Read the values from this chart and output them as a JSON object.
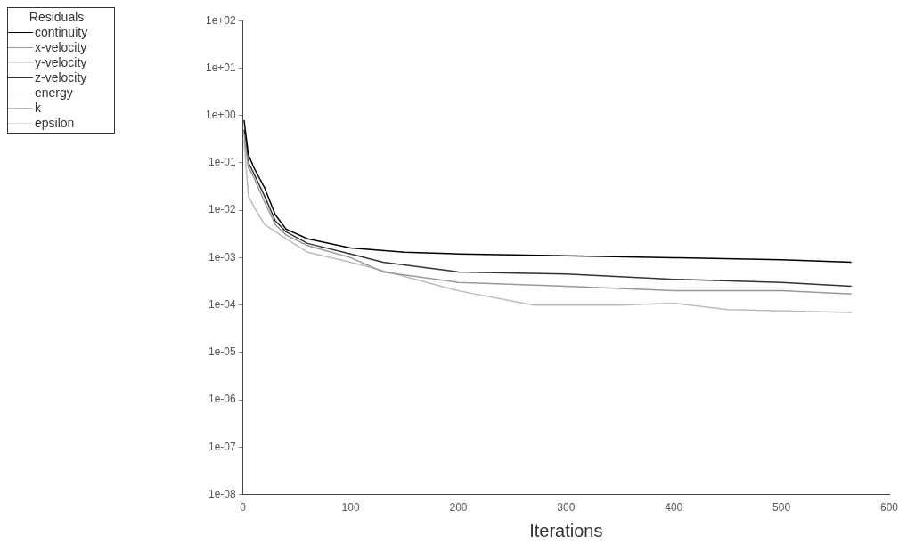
{
  "chart_data": {
    "type": "line",
    "xlabel": "Iterations",
    "legend_title": "Residuals",
    "legend": "top left",
    "grid": false,
    "log": "y",
    "marker": "none",
    "line_style": "solid",
    "xlim": [
      0,
      600
    ],
    "xticks": [
      0,
      100,
      200,
      300,
      400,
      500,
      600
    ],
    "ylim": [
      1e-08,
      100
    ],
    "yticks": [
      {
        "value": 1e-08,
        "label": "1e-08"
      },
      {
        "value": 1e-07,
        "label": "1e-07"
      },
      {
        "value": 1e-06,
        "label": "1e-06"
      },
      {
        "value": 1e-05,
        "label": "1e-05"
      },
      {
        "value": 0.0001,
        "label": "1e-04"
      },
      {
        "value": 0.001,
        "label": "1e-03"
      },
      {
        "value": 0.01,
        "label": "1e-02"
      },
      {
        "value": 0.1,
        "label": "1e-01"
      },
      {
        "value": 1,
        "label": "1e+00"
      },
      {
        "value": 10,
        "label": "1e+01"
      },
      {
        "value": 100,
        "label": "1e+02"
      }
    ],
    "series": [
      {
        "name": "continuity",
        "color": "#000000",
        "x": [
          1,
          5,
          10,
          20,
          30,
          40,
          60,
          100,
          150,
          200,
          300,
          400,
          500,
          565
        ],
        "values": [
          0.8,
          0.15,
          0.08,
          0.03,
          0.008,
          0.004,
          0.0025,
          0.0016,
          0.0013,
          0.0012,
          0.0011,
          0.001,
          0.0009,
          0.0008
        ]
      },
      {
        "name": "x-velocity",
        "color": "#999999",
        "x": [
          1,
          5,
          10,
          20,
          30,
          40,
          60,
          100,
          130,
          200,
          300,
          400,
          500,
          565
        ],
        "values": [
          0.4,
          0.08,
          0.05,
          0.015,
          0.005,
          0.003,
          0.0018,
          0.001,
          0.0005,
          0.0003,
          0.00025,
          0.0002,
          0.0002,
          0.00017
        ]
      },
      {
        "name": "y-velocity",
        "color": "#dddddd"
      },
      {
        "name": "z-velocity",
        "color": "#333333",
        "x": [
          1,
          5,
          10,
          20,
          30,
          40,
          60,
          100,
          130,
          200,
          300,
          400,
          500,
          565
        ],
        "values": [
          0.5,
          0.1,
          0.06,
          0.02,
          0.006,
          0.0035,
          0.002,
          0.0012,
          0.0008,
          0.0005,
          0.00045,
          0.00035,
          0.0003,
          0.00025
        ]
      },
      {
        "name": "energy",
        "color": "#dddddd"
      },
      {
        "name": "k",
        "color": "#bbbbbb",
        "x": [
          1,
          5,
          10,
          20,
          40,
          60,
          100,
          150,
          200,
          270,
          350,
          400,
          450,
          565
        ],
        "values": [
          0.3,
          0.02,
          0.012,
          0.005,
          0.0025,
          0.0013,
          0.0008,
          0.0004,
          0.0002,
          0.0001,
          0.0001,
          0.00011,
          8e-05,
          7e-05
        ]
      },
      {
        "name": "epsilon",
        "color": "#dddddd"
      }
    ]
  }
}
